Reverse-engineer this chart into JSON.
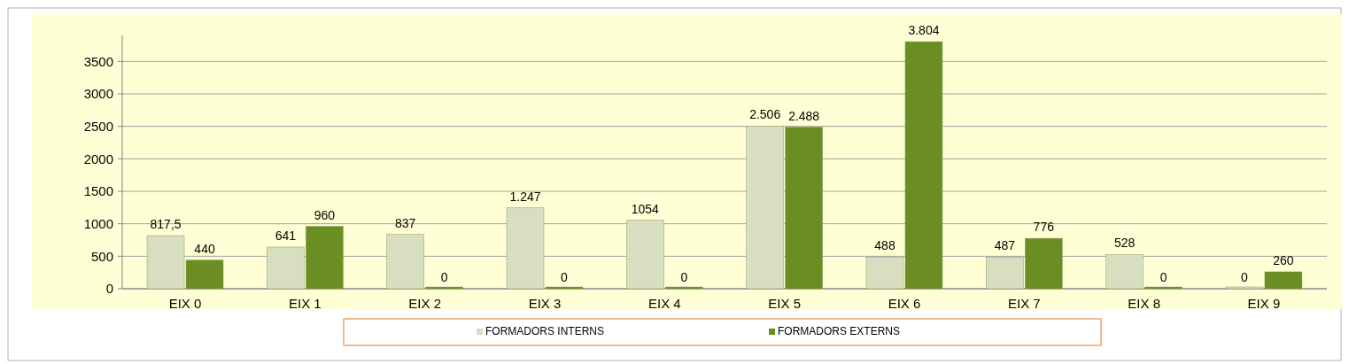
{
  "chart_data": {
    "type": "bar",
    "categories": [
      "EIX 0",
      "EIX 1",
      "EIX 2",
      "EIX 3",
      "EIX 4",
      "EIX 5",
      "EIX 6",
      "EIX 7",
      "EIX 8",
      "EIX 9"
    ],
    "series": [
      {
        "name": "FORMADORS INTERNS",
        "color": "#d8dfc0",
        "values": [
          817.5,
          641,
          837,
          1247,
          1054,
          2506,
          488,
          487,
          528,
          0
        ],
        "value_labels": [
          "817,5",
          "641",
          "837",
          "1.247",
          "1054",
          "2.506",
          "488",
          "487",
          "528",
          "0"
        ]
      },
      {
        "name": "FORMADORS EXTERNS",
        "color": "#6b8e23",
        "values": [
          440,
          960,
          0,
          0,
          0,
          2488,
          3804,
          776,
          0,
          260
        ],
        "value_labels": [
          "440",
          "960",
          "0",
          "0",
          "0",
          "2.488",
          "3.804",
          "776",
          "0",
          "260"
        ]
      }
    ],
    "ylim": [
      0,
      3900
    ],
    "yticks": [
      0,
      500,
      1000,
      1500,
      2000,
      2500,
      3000,
      3500
    ],
    "grid": "y",
    "legend": "bottom"
  }
}
